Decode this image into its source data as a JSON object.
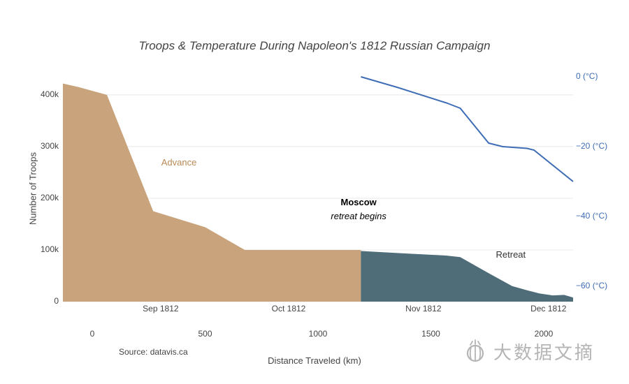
{
  "source": {
    "text": "Source: datavis.ca"
  },
  "watermark": {
    "text": "大数据文摘",
    "icon": "bee-logo",
    "color": "#b5b5b5"
  },
  "chart_data": {
    "type": "area",
    "title": "Troops & Temperature During Napoleon's 1812 Russian Campaign",
    "xlabel": "Distance Traveled (km)",
    "ylabel": "Number of Troops",
    "x_range_km": [
      -130,
      2130
    ],
    "grid": {
      "show": true,
      "color": "#e8e8e8"
    },
    "troops_axis": {
      "range": [
        0,
        435000
      ],
      "ticks": [
        {
          "value": 0,
          "label": "0"
        },
        {
          "value": 100000,
          "label": "100k"
        },
        {
          "value": 200000,
          "label": "200k"
        },
        {
          "value": 300000,
          "label": "300k"
        },
        {
          "value": 400000,
          "label": "400k"
        }
      ]
    },
    "temp_axis": {
      "range": [
        -64.4,
        0
      ],
      "color": "#3E6DB5",
      "ticks": [
        {
          "value": 0,
          "label": "0 (°C)"
        },
        {
          "value": -20,
          "label": "−20 (°C)"
        },
        {
          "value": -40,
          "label": "−40 (°C)"
        },
        {
          "value": -60,
          "label": "−60 (°C)"
        }
      ]
    },
    "date_axis": {
      "ticks": [
        {
          "km": 303,
          "label": "Sep 1812"
        },
        {
          "km": 870,
          "label": "Oct 1812"
        },
        {
          "km": 1467,
          "label": "Nov 1812"
        },
        {
          "km": 2021,
          "label": "Dec 1812"
        }
      ]
    },
    "distance_axis": {
      "ticks": [
        {
          "km": 0,
          "label": "0"
        },
        {
          "km": 500,
          "label": "500"
        },
        {
          "km": 1000,
          "label": "1000"
        },
        {
          "km": 1500,
          "label": "1500"
        },
        {
          "km": 2000,
          "label": "2000"
        }
      ]
    },
    "series": [
      {
        "name": "Advance",
        "type": "area",
        "color": "#C8A37C",
        "x_km": [
          -130,
          -60,
          65,
          270,
          500,
          676,
          900,
          1190
        ],
        "troops": [
          422000,
          415000,
          400000,
          175000,
          144000,
          100000,
          100000,
          100000
        ]
      },
      {
        "name": "Retreat",
        "type": "area",
        "color": "#4E6D78",
        "x_km": [
          1190,
          1400,
          1570,
          1630,
          1760,
          1860,
          1926,
          1980,
          2040,
          2090,
          2130
        ],
        "troops": [
          98000,
          93000,
          89000,
          86000,
          54000,
          30000,
          22000,
          16000,
          12000,
          13000,
          8000
        ]
      },
      {
        "name": "Temperature",
        "type": "line",
        "axis": "temp",
        "color": "#3E6DB5",
        "x_km": [
          1190,
          1350,
          1570,
          1630,
          1756,
          1818,
          1926,
          1957,
          2130
        ],
        "temp_c": [
          0,
          -3,
          -7.5,
          -9,
          -19,
          -20,
          -20.5,
          -21,
          -30
        ]
      }
    ],
    "annotations": [
      {
        "text": "Advance",
        "km": 384,
        "troops": 267000,
        "color": "#B98A55",
        "bold": false,
        "italic": false
      },
      {
        "text": "Moscow",
        "km": 1180,
        "troops": 190000,
        "color": "#000000",
        "bold": true,
        "italic": false
      },
      {
        "text": "retreat begins",
        "km": 1180,
        "troops": 164000,
        "color": "#000000",
        "bold": false,
        "italic": true
      },
      {
        "text": "Retreat",
        "km": 1854,
        "troops": 89000,
        "color": "#333333",
        "bold": false,
        "italic": false
      }
    ]
  }
}
